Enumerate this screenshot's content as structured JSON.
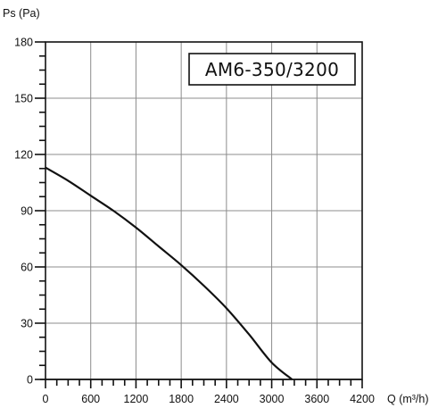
{
  "chart_data": {
    "type": "line",
    "title": "AM6-350/3200",
    "ylabel": "Ps (Pa)",
    "xlabel": "Q (m³/h)",
    "xlim": [
      0,
      4200
    ],
    "ylim": [
      0,
      180
    ],
    "x_ticks": [
      "0",
      "600",
      "1200",
      "1800",
      "2400",
      "3000",
      "3600",
      "4200"
    ],
    "y_ticks": [
      "0",
      "30",
      "60",
      "90",
      "120",
      "150",
      "180"
    ],
    "grid": true,
    "series": [
      {
        "x": [
          0,
          300,
          600,
          900,
          1200,
          1500,
          1800,
          2100,
          2400,
          2700,
          3000,
          3270
        ],
        "y": [
          113,
          106,
          98,
          90,
          81,
          71,
          61,
          50,
          38,
          24,
          9,
          0
        ]
      }
    ]
  }
}
